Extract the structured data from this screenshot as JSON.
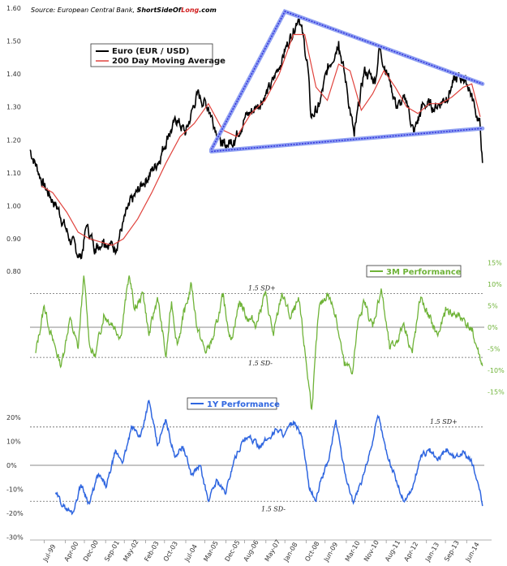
{
  "source": {
    "prefix": "Source: European Central Bank, ",
    "brand_a": "ShortSideOf",
    "brand_b": "Long",
    "brand_c": ".com"
  },
  "chart_data": [
    {
      "type": "line",
      "legend": "top-left",
      "ylim": [
        0.8,
        1.6
      ],
      "y_ticks": [
        "0.80",
        "0.90",
        "1.00",
        "1.10",
        "1.20",
        "1.30",
        "1.40",
        "1.50",
        "1.60"
      ],
      "series": [
        {
          "name": "Euro (EUR / USD)",
          "color": "#000000",
          "x": [
            1999.0,
            1999.5,
            2000.0,
            2000.4,
            2000.8,
            2001.0,
            2001.3,
            2001.6,
            2002.0,
            2002.5,
            2003.0,
            2003.5,
            2003.9,
            2004.2,
            2004.5,
            2004.9,
            2005.3,
            2005.8,
            2006.2,
            2006.6,
            2007.0,
            2007.5,
            2008.0,
            2008.5,
            2008.8,
            2008.92,
            2009.2,
            2009.5,
            2009.9,
            2010.2,
            2010.45,
            2010.8,
            2011.2,
            2011.33,
            2011.7,
            2011.95,
            2012.3,
            2012.55,
            2012.9,
            2013.3,
            2013.7,
            2014.0,
            2014.3,
            2014.5,
            2014.7,
            2014.9,
            2014.98
          ],
          "values": [
            1.17,
            1.06,
            0.99,
            0.9,
            0.84,
            0.94,
            0.87,
            0.9,
            0.87,
            1.0,
            1.07,
            1.13,
            1.22,
            1.26,
            1.22,
            1.34,
            1.3,
            1.18,
            1.2,
            1.27,
            1.3,
            1.36,
            1.47,
            1.58,
            1.43,
            1.27,
            1.3,
            1.41,
            1.5,
            1.35,
            1.21,
            1.41,
            1.38,
            1.48,
            1.38,
            1.3,
            1.32,
            1.22,
            1.31,
            1.3,
            1.33,
            1.38,
            1.39,
            1.36,
            1.3,
            1.24,
            1.13
          ]
        },
        {
          "name": "200 Day Moving Average",
          "color": "#e0433d",
          "x": [
            1999.4,
            1999.8,
            2000.3,
            2000.7,
            2001.1,
            2001.5,
            2001.9,
            2002.3,
            2002.8,
            2003.3,
            2003.8,
            2004.3,
            2004.8,
            2005.3,
            2005.8,
            2006.3,
            2006.8,
            2007.3,
            2007.8,
            2008.3,
            2008.7,
            2009.1,
            2009.5,
            2009.9,
            2010.3,
            2010.7,
            2011.1,
            2011.5,
            2011.9,
            2012.3,
            2012.7,
            2013.1,
            2013.5,
            2013.9,
            2014.3,
            2014.6,
            2014.9
          ],
          "values": [
            1.06,
            1.04,
            0.98,
            0.92,
            0.9,
            0.89,
            0.88,
            0.9,
            0.96,
            1.04,
            1.13,
            1.21,
            1.25,
            1.31,
            1.23,
            1.21,
            1.28,
            1.32,
            1.4,
            1.52,
            1.52,
            1.36,
            1.32,
            1.43,
            1.41,
            1.29,
            1.34,
            1.41,
            1.36,
            1.3,
            1.28,
            1.31,
            1.31,
            1.33,
            1.36,
            1.37,
            1.27
          ]
        },
        {
          "name": "",
          "color": "#3333dd",
          "x": [
            2005.4,
            2008.0,
            2014.98
          ],
          "values": [
            1.17,
            1.59,
            1.37
          ]
        },
        {
          "name": "",
          "color": "#3333dd",
          "x": [
            2005.4,
            2014.98
          ],
          "values": [
            1.165,
            1.235
          ]
        }
      ]
    },
    {
      "type": "line",
      "legend": "top-right",
      "ylim": [
        -0.15,
        0.15
      ],
      "y_ticks": [
        "15%",
        "10%",
        "5%",
        "0%",
        "-5%",
        "-10%",
        "-15%"
      ],
      "reference_lines": [
        {
          "value": 0.078,
          "label": "1.5 SD+"
        },
        {
          "value": -0.07,
          "label": "1.5 SD-"
        }
      ],
      "series": [
        {
          "name": "3M Performance",
          "color": "#6fb338",
          "x": [
            1999.2,
            1999.5,
            1999.8,
            2000.1,
            2000.4,
            2000.7,
            2000.9,
            2001.1,
            2001.3,
            2001.6,
            2001.9,
            2002.2,
            2002.5,
            2002.7,
            2003.0,
            2003.2,
            2003.5,
            2003.8,
            2004.0,
            2004.2,
            2004.4,
            2004.7,
            2004.9,
            2005.2,
            2005.5,
            2005.8,
            2006.1,
            2006.4,
            2006.7,
            2007.0,
            2007.3,
            2007.6,
            2007.9,
            2008.2,
            2008.5,
            2008.75,
            2008.95,
            2009.2,
            2009.5,
            2009.8,
            2010.1,
            2010.4,
            2010.6,
            2010.8,
            2011.1,
            2011.4,
            2011.7,
            2011.9,
            2012.2,
            2012.5,
            2012.8,
            2013.1,
            2013.4,
            2013.7,
            2014.0,
            2014.3,
            2014.6,
            2014.8,
            2014.98
          ],
          "values": [
            -0.06,
            0.05,
            -0.03,
            -0.09,
            0.02,
            -0.05,
            0.12,
            -0.04,
            -0.07,
            0.03,
            0.01,
            -0.02,
            0.12,
            0.04,
            0.08,
            -0.02,
            0.07,
            -0.07,
            0.06,
            -0.04,
            0.02,
            0.1,
            0.0,
            -0.06,
            -0.02,
            0.07,
            -0.03,
            0.06,
            0.02,
            0.01,
            0.08,
            -0.02,
            0.08,
            0.02,
            0.06,
            -0.08,
            -0.19,
            0.04,
            0.08,
            0.03,
            -0.09,
            -0.1,
            0.02,
            0.06,
            0.0,
            0.09,
            -0.05,
            -0.04,
            0.01,
            -0.06,
            0.07,
            0.02,
            -0.02,
            0.04,
            0.03,
            0.02,
            -0.01,
            -0.05,
            -0.09
          ]
        },
        {
          "name": "1Y Performance",
          "color": "#2f66e0",
          "x": [
            1999.9,
            2000.2,
            2000.5,
            2000.8,
            2001.1,
            2001.4,
            2001.7,
            2002.0,
            2002.3,
            2002.6,
            2002.9,
            2003.2,
            2003.5,
            2003.8,
            2004.1,
            2004.4,
            2004.7,
            2005.0,
            2005.3,
            2005.6,
            2005.9,
            2006.2,
            2006.5,
            2006.8,
            2007.1,
            2007.4,
            2007.7,
            2008.0,
            2008.3,
            2008.6,
            2008.85,
            2009.1,
            2009.3,
            2009.55,
            2009.8,
            2010.1,
            2010.4,
            2010.7,
            2011.0,
            2011.3,
            2011.6,
            2011.9,
            2012.2,
            2012.5,
            2012.8,
            2013.1,
            2013.4,
            2013.7,
            2014.0,
            2014.3,
            2014.6,
            2014.85,
            2014.98
          ],
          "values": [
            -0.12,
            -0.17,
            -0.2,
            -0.08,
            -0.16,
            -0.04,
            -0.09,
            0.05,
            0.02,
            0.16,
            0.12,
            0.27,
            0.08,
            0.19,
            0.04,
            0.08,
            -0.04,
            0.0,
            -0.15,
            -0.06,
            -0.12,
            0.02,
            0.1,
            0.11,
            0.08,
            0.11,
            0.15,
            0.13,
            0.18,
            0.12,
            -0.09,
            -0.15,
            -0.05,
            0.02,
            0.19,
            -0.02,
            -0.15,
            -0.08,
            0.06,
            0.2,
            0.05,
            -0.05,
            -0.15,
            -0.1,
            0.04,
            0.06,
            0.02,
            0.07,
            0.03,
            0.06,
            0.01,
            -0.09,
            -0.17
          ]
        }
      ],
      "y_ticks_2": [
        "20%",
        "10%",
        "0%",
        "-10%",
        "-20%",
        "-30%"
      ],
      "ylim_2": [
        -0.3,
        0.25
      ],
      "reference_lines_2": [
        {
          "value": 0.16,
          "label": "1.5 SD+"
        },
        {
          "value": -0.15,
          "label": "1.5 SD-"
        }
      ]
    }
  ],
  "middle_panel_left_label": "0.80",
  "x_ticks": [
    "Jul-99",
    "Apr-00",
    "Dec-00",
    "Sep-01",
    "May-02",
    "Feb-03",
    "Oct-03",
    "Jul-04",
    "Mar-05",
    "Dec-05",
    "Aug-06",
    "May-07",
    "Jan-08",
    "Oct-08",
    "Jun-09",
    "Mar-10",
    "Nov-10",
    "Aug-11",
    "Apr-12",
    "Jan-13",
    "Sep-13",
    "Jun-14"
  ],
  "x_tick_values": [
    1999.5,
    2000.25,
    2000.92,
    2001.67,
    2002.33,
    2003.08,
    2003.75,
    2004.5,
    2005.17,
    2005.92,
    2006.58,
    2007.33,
    2008.0,
    2008.75,
    2009.42,
    2010.17,
    2010.83,
    2011.58,
    2012.25,
    2013.0,
    2013.67,
    2014.42
  ]
}
